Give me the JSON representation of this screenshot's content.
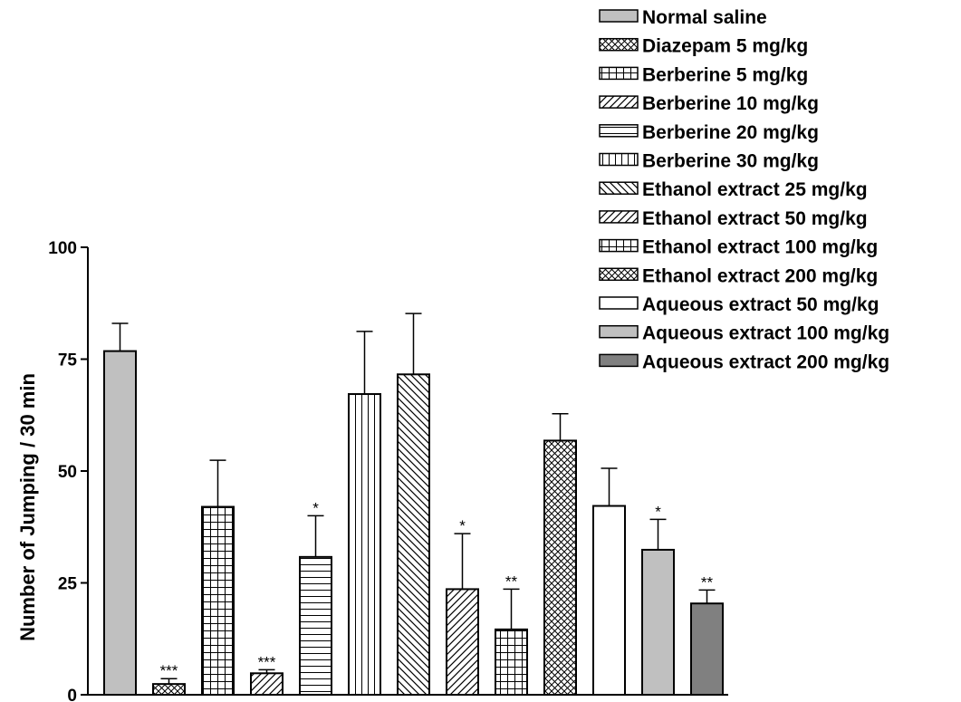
{
  "chart_data": {
    "type": "bar",
    "ylabel": "Number of Jumping / 30 min",
    "xlabel": "",
    "ylim": [
      0,
      100
    ],
    "yticks": [
      0,
      25,
      50,
      75,
      100
    ],
    "grid": false,
    "legend_position": "top-right",
    "categories": [
      "Normal saline",
      "Diazepam 5 mg/kg",
      "Berberine 5 mg/kg",
      "Berberine 10 mg/kg",
      "Berberine 20 mg/kg",
      "Berberine 30 mg/kg",
      "Ethanol extract 25 mg/kg",
      "Ethanol extract 50 mg/kg",
      "Ethanol extract 100 mg/kg",
      "Ethanol extract 200 mg/kg",
      "Aqueous extract 50 mg/kg",
      "Aqueous extract 100 mg/kg",
      "Aqueous extract 200 mg/kg"
    ],
    "values": [
      76.8,
      2.4,
      42.0,
      4.8,
      30.8,
      67.2,
      71.6,
      23.6,
      14.6,
      56.8,
      42.2,
      32.4,
      20.4
    ],
    "errors": [
      6.2,
      1.2,
      10.4,
      0.8,
      9.2,
      14.0,
      13.6,
      12.4,
      9.0,
      6.0,
      8.4,
      6.8,
      3.0
    ],
    "significance": [
      "",
      "***",
      "",
      "***",
      "*",
      "",
      "",
      "*",
      "**",
      "",
      "",
      "*",
      "**"
    ],
    "patterns": [
      "solid-lightgray",
      "crosshatch-diagonal",
      "grid",
      "diag-right",
      "horizontal",
      "vertical",
      "diag-left",
      "diag-right",
      "grid",
      "crosshatch-diagonal",
      "solid-white",
      "solid-lightgray",
      "solid-darkgray"
    ],
    "colors": {
      "lightgray": "#c0c0c0",
      "darkgray": "#808080",
      "white": "#ffffff",
      "ink": "#000000"
    }
  }
}
